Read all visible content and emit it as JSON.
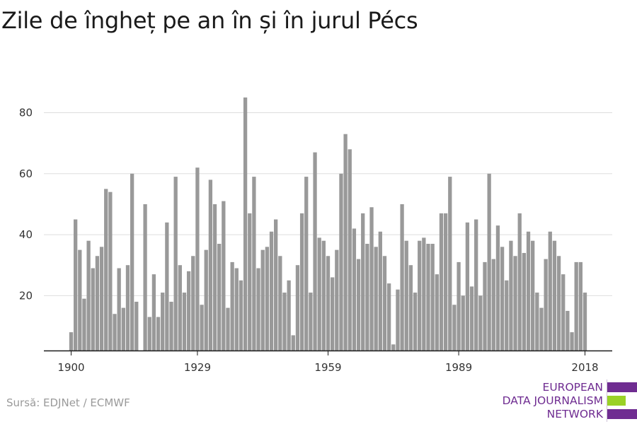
{
  "title": "Zile de îngheț pe an în și în jurul Pécs",
  "source": "Sursă: EDJNet / ECMWF",
  "logo": {
    "lines": [
      "EUROPEAN",
      "DATA JOURNALISM",
      "NETWORK"
    ],
    "colors": {
      "purple": "#6f2c91",
      "green": "#9ad127"
    }
  },
  "colors": {
    "bar": "#999999",
    "grid": "#dddddd",
    "axis": "#1a1a1a",
    "text": "#333333"
  },
  "chart_data": {
    "type": "bar",
    "title": "Zile de îngheț pe an în și în jurul Pécs",
    "xlabel": "",
    "ylabel": "",
    "x_ticks": [
      "1900",
      "1929",
      "1959",
      "1989",
      "2018"
    ],
    "y_ticks": [
      20,
      40,
      60,
      80
    ],
    "ylim": [
      2,
      88
    ],
    "grid": true,
    "x": [
      1900,
      1901,
      1902,
      1903,
      1904,
      1905,
      1906,
      1907,
      1908,
      1909,
      1910,
      1911,
      1912,
      1913,
      1914,
      1915,
      1916,
      1917,
      1918,
      1919,
      1920,
      1921,
      1922,
      1923,
      1924,
      1925,
      1926,
      1927,
      1928,
      1929,
      1930,
      1931,
      1932,
      1933,
      1934,
      1935,
      1936,
      1937,
      1938,
      1939,
      1940,
      1941,
      1942,
      1943,
      1944,
      1945,
      1946,
      1947,
      1948,
      1949,
      1950,
      1951,
      1952,
      1953,
      1954,
      1955,
      1956,
      1957,
      1958,
      1959,
      1960,
      1961,
      1962,
      1963,
      1964,
      1965,
      1966,
      1967,
      1968,
      1969,
      1970,
      1971,
      1972,
      1973,
      1974,
      1975,
      1976,
      1977,
      1978,
      1979,
      1980,
      1981,
      1982,
      1983,
      1984,
      1985,
      1986,
      1987,
      1988,
      1989,
      1990,
      1991,
      1992,
      1993,
      1994,
      1995,
      1996,
      1997,
      1998,
      1999,
      2000,
      2001,
      2002,
      2003,
      2004,
      2005,
      2006,
      2007,
      2008,
      2009,
      2010,
      2011,
      2012,
      2013,
      2014,
      2015,
      2016,
      2017,
      2018
    ],
    "values": [
      8,
      45,
      35,
      19,
      38,
      29,
      33,
      36,
      55,
      54,
      14,
      29,
      16,
      30,
      60,
      18,
      null,
      50,
      13,
      27,
      13,
      21,
      44,
      18,
      59,
      30,
      21,
      28,
      33,
      62,
      17,
      35,
      58,
      50,
      37,
      51,
      16,
      31,
      29,
      25,
      85,
      47,
      59,
      29,
      35,
      36,
      41,
      45,
      33,
      21,
      25,
      7,
      30,
      47,
      59,
      21,
      67,
      39,
      38,
      33,
      26,
      35,
      60,
      73,
      68,
      42,
      32,
      47,
      37,
      49,
      36,
      41,
      33,
      24,
      4,
      22,
      50,
      38,
      30,
      21,
      38,
      39,
      37,
      37,
      27,
      47,
      47,
      59,
      17,
      31,
      20,
      44,
      23,
      45,
      20,
      31,
      60,
      32,
      43,
      36,
      25,
      38,
      33,
      47,
      34,
      41,
      38,
      21,
      16,
      32,
      41,
      38,
      33,
      27,
      15,
      8,
      31,
      31,
      21
    ]
  }
}
